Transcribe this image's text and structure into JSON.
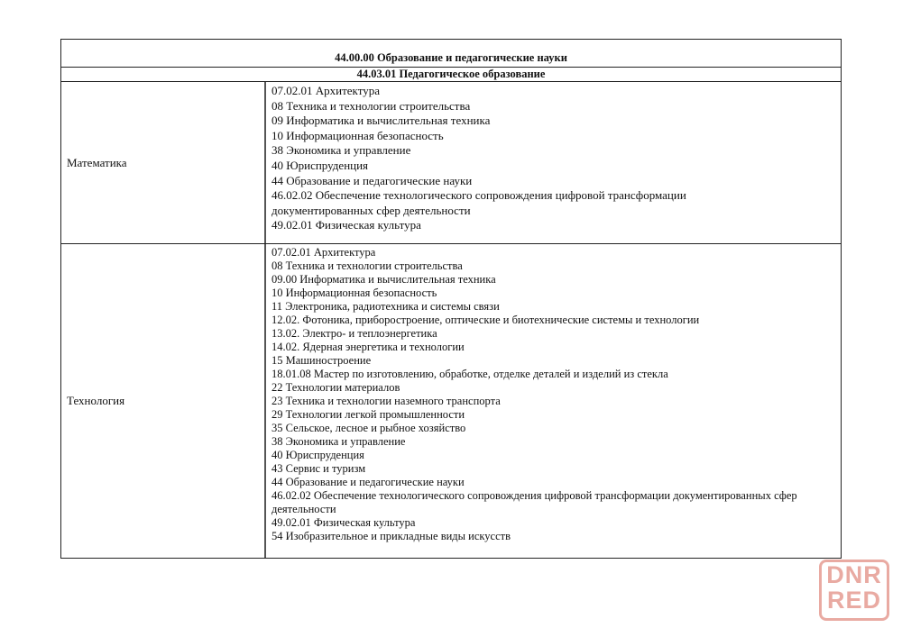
{
  "header": {
    "group": "44.00.00 Образование и педагогические науки",
    "program": "44.03.01 Педагогическое образование"
  },
  "rows": [
    {
      "subject": "Математика",
      "items": [
        "07.02.01 Архитектура",
        "08 Техника и технологии строительства",
        "09 Информатика и вычислительная техника",
        "10 Информационная безопасность",
        "38 Экономика и управление",
        "40 Юриспруденция",
        "44 Образование и педагогические науки",
        "46.02.02 Обеспечение технологического сопровождения цифровой трансформации",
        "документированных сфер деятельности",
        "49.02.01 Физическая культура"
      ]
    },
    {
      "subject": "Технология",
      "items": [
        "07.02.01 Архитектура",
        "08 Техника и технологии строительства",
        "09.00 Информатика и вычислительная техника",
        "10 Информационная безопасность",
        "11 Электроника, радиотехника и системы связи",
        "12.02. Фотоника, приборостроение, оптические и биотехнические системы и технологии",
        "13.02. Электро- и теплоэнергетика",
        "14.02. Ядерная энергетика и технологии",
        "15 Машиностроение",
        "18.01.08 Мастер по изготовлению, обработке, отделке деталей и изделий из стекла",
        "22 Технологии материалов",
        "23 Техника и технологии наземного транспорта",
        "29 Технологии легкой промышленности",
        "35 Сельское, лесное и рыбное хозяйство",
        "38 Экономика и управление",
        "40 Юриспруденция",
        "43 Сервис и туризм",
        "44 Образование и педагогические науки",
        "46.02.02 Обеспечение технологического сопровождения цифровой трансформации документированных сфер",
        "деятельности",
        "49.02.01 Физическая культура",
        "54 Изобразительное и прикладные виды искусств"
      ]
    }
  ],
  "watermark": {
    "line1": "DNR",
    "line2": "RED",
    "color": "#e9aaa2"
  }
}
